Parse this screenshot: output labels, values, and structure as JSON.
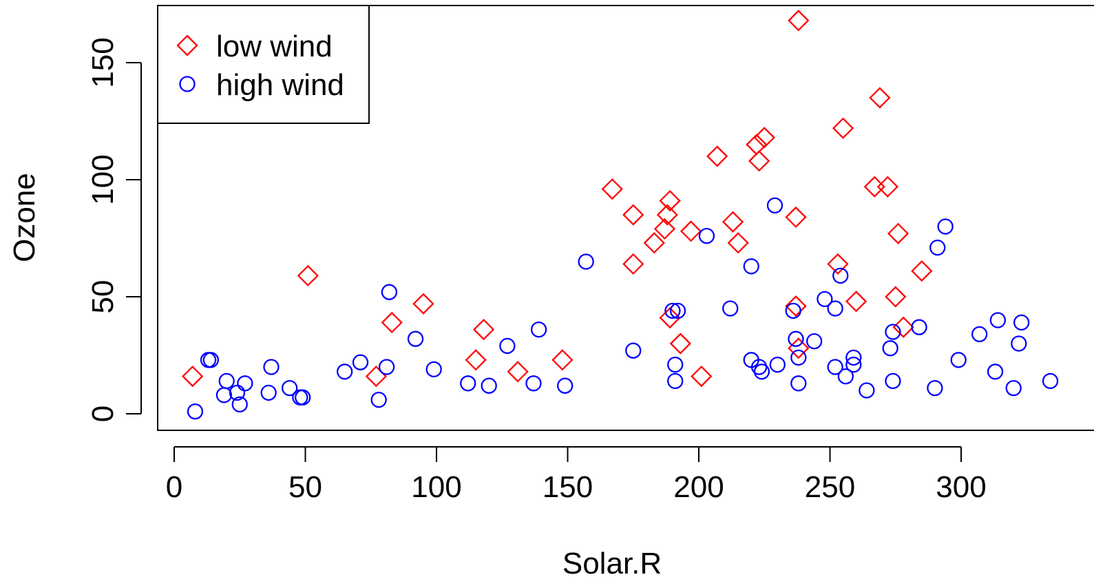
{
  "chart_data": {
    "type": "scatter",
    "title": "",
    "xlabel": "Solar.R",
    "ylabel": "Ozone",
    "xlim": [
      0,
      334
    ],
    "ylim": [
      0,
      168
    ],
    "x_ticks": [
      0,
      50,
      100,
      150,
      200,
      250,
      300
    ],
    "y_ticks": [
      0,
      50,
      100,
      150
    ],
    "grid": false,
    "legend_position": "top-left",
    "series": [
      {
        "name": "low wind",
        "marker": "diamond",
        "color": "#ff0000",
        "points": [
          [
            7,
            16
          ],
          [
            51,
            59
          ],
          [
            77,
            16
          ],
          [
            83,
            39
          ],
          [
            95,
            47
          ],
          [
            115,
            23
          ],
          [
            118,
            36
          ],
          [
            131,
            18
          ],
          [
            148,
            23
          ],
          [
            167,
            96
          ],
          [
            175,
            85
          ],
          [
            175,
            64
          ],
          [
            183,
            73
          ],
          [
            187,
            79
          ],
          [
            188,
            85
          ],
          [
            189,
            91
          ],
          [
            189,
            41
          ],
          [
            193,
            30
          ],
          [
            197,
            78
          ],
          [
            201,
            16
          ],
          [
            207,
            110
          ],
          [
            213,
            82
          ],
          [
            215,
            73
          ],
          [
            222,
            115
          ],
          [
            223,
            108
          ],
          [
            225,
            118
          ],
          [
            237,
            84
          ],
          [
            237,
            46
          ],
          [
            238,
            168
          ],
          [
            238,
            28
          ],
          [
            253,
            64
          ],
          [
            255,
            122
          ],
          [
            260,
            48
          ],
          [
            267,
            97
          ],
          [
            269,
            135
          ],
          [
            272,
            97
          ],
          [
            275,
            50
          ],
          [
            276,
            77
          ],
          [
            278,
            37
          ],
          [
            285,
            61
          ]
        ]
      },
      {
        "name": "high wind",
        "marker": "circle",
        "color": "#0000ff",
        "points": [
          [
            8,
            1
          ],
          [
            13,
            23
          ],
          [
            14,
            23
          ],
          [
            19,
            8
          ],
          [
            20,
            14
          ],
          [
            24,
            9
          ],
          [
            25,
            4
          ],
          [
            27,
            13
          ],
          [
            36,
            9
          ],
          [
            37,
            20
          ],
          [
            44,
            11
          ],
          [
            48,
            7
          ],
          [
            49,
            7
          ],
          [
            65,
            18
          ],
          [
            71,
            22
          ],
          [
            78,
            6
          ],
          [
            81,
            20
          ],
          [
            82,
            52
          ],
          [
            92,
            32
          ],
          [
            99,
            19
          ],
          [
            112,
            13
          ],
          [
            120,
            12
          ],
          [
            127,
            29
          ],
          [
            137,
            13
          ],
          [
            139,
            36
          ],
          [
            149,
            12
          ],
          [
            157,
            65
          ],
          [
            175,
            27
          ],
          [
            190,
            44
          ],
          [
            191,
            21
          ],
          [
            191,
            14
          ],
          [
            192,
            44
          ],
          [
            203,
            76
          ],
          [
            212,
            45
          ],
          [
            220,
            63
          ],
          [
            220,
            23
          ],
          [
            223,
            20
          ],
          [
            224,
            18
          ],
          [
            229,
            89
          ],
          [
            230,
            21
          ],
          [
            236,
            44
          ],
          [
            237,
            32
          ],
          [
            238,
            13
          ],
          [
            238,
            24
          ],
          [
            244,
            31
          ],
          [
            248,
            49
          ],
          [
            252,
            45
          ],
          [
            252,
            20
          ],
          [
            254,
            59
          ],
          [
            256,
            16
          ],
          [
            259,
            24
          ],
          [
            259,
            21
          ],
          [
            264,
            10
          ],
          [
            273,
            28
          ],
          [
            274,
            35
          ],
          [
            274,
            14
          ],
          [
            284,
            37
          ],
          [
            290,
            11
          ],
          [
            291,
            71
          ],
          [
            294,
            80
          ],
          [
            299,
            23
          ],
          [
            307,
            34
          ],
          [
            313,
            18
          ],
          [
            314,
            40
          ],
          [
            320,
            11
          ],
          [
            322,
            30
          ],
          [
            323,
            39
          ],
          [
            334,
            14
          ]
        ]
      }
    ]
  }
}
